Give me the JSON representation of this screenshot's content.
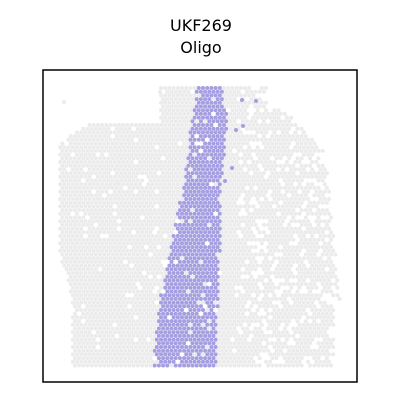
{
  "chart_data": {
    "type": "scatter",
    "title_lines": [
      "UKF269",
      "Oligo"
    ],
    "xlabel": "",
    "ylabel": "",
    "grid": false,
    "legend": "none",
    "frame": true,
    "colors": {
      "background_spots": "#ebebeb",
      "highlight": "#a59ee0",
      "frame": "#000000"
    },
    "series": [
      {
        "name": "",
        "color": "#ebebeb",
        "role": "all-spots",
        "description_type": "tissue-spots"
      },
      {
        "name": "",
        "color": "#a59ee0",
        "role": "Oligo-spots",
        "description_type": "highlighted-spots"
      }
    ]
  }
}
